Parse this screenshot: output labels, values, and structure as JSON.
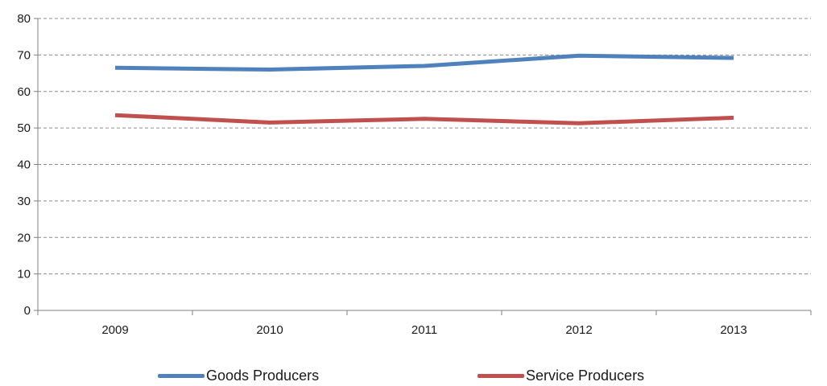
{
  "chart_data": {
    "type": "line",
    "categories": [
      "2009",
      "2010",
      "2011",
      "2012",
      "2013"
    ],
    "series": [
      {
        "name": "Goods Producers",
        "color": "#4f81bd",
        "values": [
          66.5,
          66.0,
          67.0,
          69.8,
          69.2
        ]
      },
      {
        "name": "Service Producers",
        "color": "#c0504d",
        "values": [
          53.5,
          51.5,
          52.5,
          51.3,
          52.8
        ]
      }
    ],
    "ylim": [
      0,
      80
    ],
    "yticks": [
      "0",
      "10",
      "20",
      "30",
      "40",
      "50",
      "60",
      "70",
      "80"
    ],
    "grid": true,
    "legend_position": "bottom"
  }
}
